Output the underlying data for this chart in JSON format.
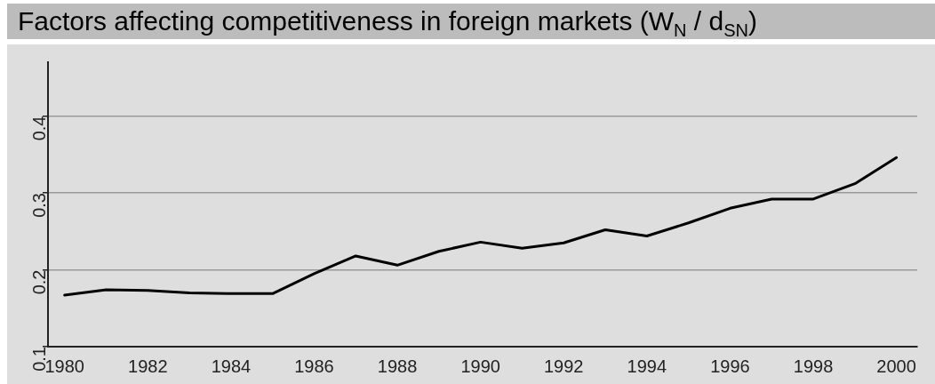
{
  "chart_data": {
    "type": "line",
    "title": "Factors affecting competitiveness in foreign markets (W$_{N}$  / d$_{SN}$)",
    "x": [
      1980,
      1981,
      1982,
      1983,
      1984,
      1985,
      1986,
      1987,
      1988,
      1989,
      1990,
      1991,
      1992,
      1993,
      1994,
      1995,
      1996,
      1997,
      1998,
      1999,
      2000
    ],
    "series": [
      {
        "color": "#000000",
        "values": [
          0.167,
          0.174,
          0.173,
          0.17,
          0.169,
          0.169,
          0.195,
          0.218,
          0.206,
          0.224,
          0.236,
          0.228,
          0.235,
          0.252,
          0.244,
          0.261,
          0.28,
          0.292,
          0.292,
          0.312,
          0.346
        ]
      }
    ],
    "xlim": [
      1979.6,
      2000.5
    ],
    "xticks": [
      1980,
      1982,
      1984,
      1986,
      1988,
      1990,
      1992,
      1994,
      1996,
      1998,
      2000
    ],
    "ylim": [
      0.1,
      0.47
    ],
    "yticks": [
      0.1,
      0.2,
      0.3,
      0.4
    ],
    "grid": "y",
    "legend": false,
    "marker": "none",
    "line_style": "solid"
  }
}
